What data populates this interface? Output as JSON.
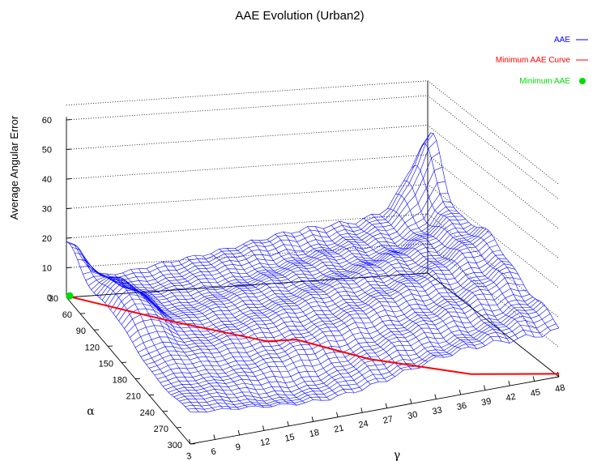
{
  "chart_data": {
    "type": "surface3d",
    "title": "AAE Evolution (Urban2)",
    "zlabel": "Average Angular Error",
    "xlabel": "γ",
    "ylabel": "α",
    "x_ticks": [
      "3",
      "6",
      "9",
      "12",
      "15",
      "18",
      "21",
      "24",
      "27",
      "30",
      "33",
      "36",
      "39",
      "42",
      "45",
      "48"
    ],
    "y_ticks": [
      "30",
      "60",
      "90",
      "120",
      "150",
      "180",
      "210",
      "240",
      "270",
      "300"
    ],
    "z_ticks": [
      "0",
      "10",
      "20",
      "30",
      "40",
      "50",
      "60"
    ],
    "xlim": [
      3,
      48
    ],
    "ylim": [
      30,
      300
    ],
    "zlim": [
      0,
      60
    ],
    "grid": "back-walls dotted",
    "legend_position": "top-right",
    "series": [
      {
        "name": "AAE",
        "color": "#0000ff",
        "style": "mesh"
      },
      {
        "name": "Minimum AAE Curve",
        "color": "#ff0000",
        "style": "line",
        "points": [
          {
            "gamma": 3,
            "alpha": 30,
            "aae": 0.5
          },
          {
            "gamma": 12,
            "alpha": 90,
            "aae": 1.0
          },
          {
            "gamma": 21,
            "alpha": 150,
            "aae": 1.3
          },
          {
            "gamma": 24,
            "alpha": 160,
            "aae": 2.5
          },
          {
            "gamma": 30,
            "alpha": 210,
            "aae": 1.5
          },
          {
            "gamma": 39,
            "alpha": 270,
            "aae": 1.2
          },
          {
            "gamma": 48,
            "alpha": 300,
            "aae": 1.0
          }
        ]
      },
      {
        "name": "Minimum AAE",
        "color": "#00dd00",
        "style": "point",
        "points": [
          {
            "gamma": 3,
            "alpha": 30,
            "aae": 0.5
          }
        ]
      }
    ]
  }
}
